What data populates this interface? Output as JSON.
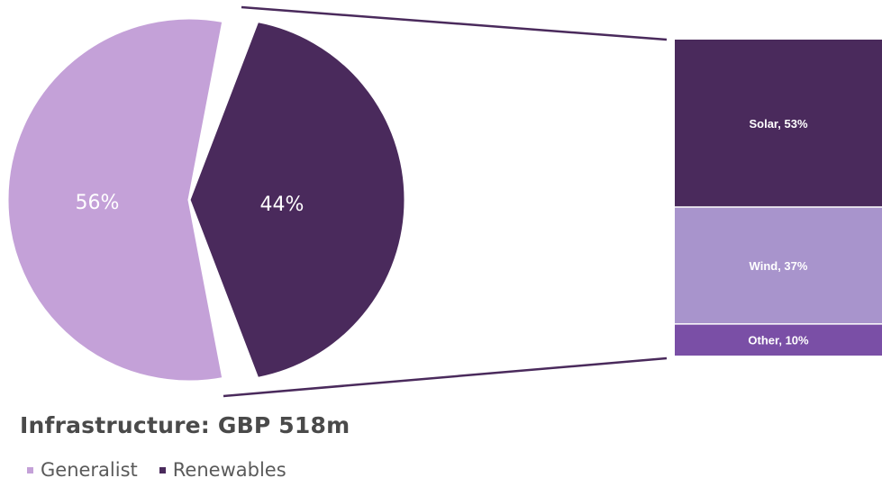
{
  "chart_data": {
    "type": "pie",
    "title": "Infrastructure: GBP 518m",
    "slices": [
      {
        "name": "Generalist",
        "value": 56,
        "label": "56%",
        "color": "#c4a1d8"
      },
      {
        "name": "Renewables",
        "value": 44,
        "label": "44%",
        "color": "#4a2a5c"
      }
    ],
    "breakdown": {
      "type": "stacked-bar",
      "parent": "Renewables",
      "segments": [
        {
          "name": "Solar",
          "value": 53,
          "label": "Solar, 53%",
          "color": "#4a2a5c"
        },
        {
          "name": "Wind",
          "value": 37,
          "label": "Wind, 37%",
          "color": "#a894cc"
        },
        {
          "name": "Other",
          "value": 10,
          "label": "Other, 10%",
          "color": "#7a4fa6"
        }
      ]
    },
    "legend": [
      {
        "label": "Generalist",
        "color": "#c4a1d8"
      },
      {
        "label": "Renewables",
        "color": "#4a2a5c"
      }
    ],
    "legend_position": "bottom-left"
  }
}
